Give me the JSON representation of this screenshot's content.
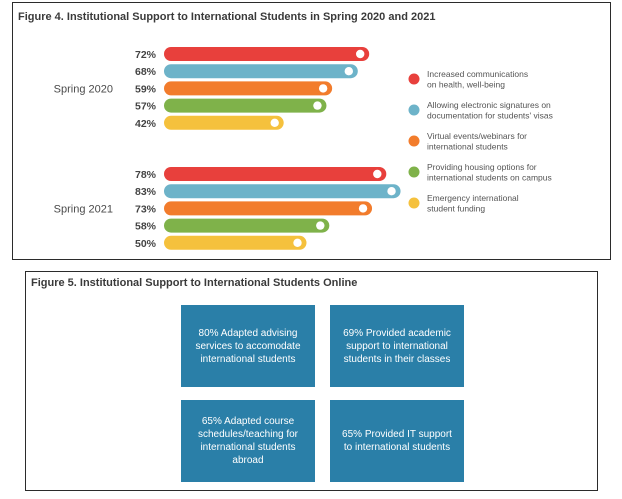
{
  "figure4": {
    "title": "Figure 4. Institutional Support to International Students in Spring 2020 and 2021",
    "chart_data": {
      "type": "bar",
      "orientation": "horizontal",
      "groups": [
        "Spring 2020",
        "Spring 2021"
      ],
      "series": [
        {
          "name": "Increased communications on health, well-being",
          "color": "#e8403c",
          "values": [
            72,
            78
          ]
        },
        {
          "name": "Allowing electronic signatures on documentation for students' visas",
          "color": "#6db3c9",
          "values": [
            68,
            83
          ]
        },
        {
          "name": "Virtual events/webinars for international students",
          "color": "#f27c2c",
          "values": [
            59,
            73
          ]
        },
        {
          "name": "Providing housing options for international students on campus",
          "color": "#7fb24a",
          "values": [
            57,
            58
          ]
        },
        {
          "name": "Emergency international student funding",
          "color": "#f5c13d",
          "values": [
            42,
            50
          ]
        }
      ],
      "value_labels": [
        [
          "72%",
          "68%",
          "59%",
          "57%",
          "42%"
        ],
        [
          "78%",
          "83%",
          "73%",
          "58%",
          "50%"
        ]
      ],
      "legend_lines": [
        [
          "Increased communications",
          "on health, well-being"
        ],
        [
          "Allowing electronic signatures on",
          "documentation for students' visas"
        ],
        [
          "Virtual events/webinars for",
          "international students"
        ],
        [
          "Providing housing options for",
          "international students on campus"
        ],
        [
          "Emergency international",
          "student funding"
        ]
      ],
      "legend_position": "right",
      "grid": false
    }
  },
  "figure5": {
    "title": "Figure 5. Institutional Support to International Students Online",
    "boxes": [
      "80% Adapted advising services to accomodate international students",
      "69% Provided academic support to international students in their classes",
      "65% Adapted course schedules/teaching for international students abroad",
      "65% Provided IT support to international students"
    ]
  }
}
